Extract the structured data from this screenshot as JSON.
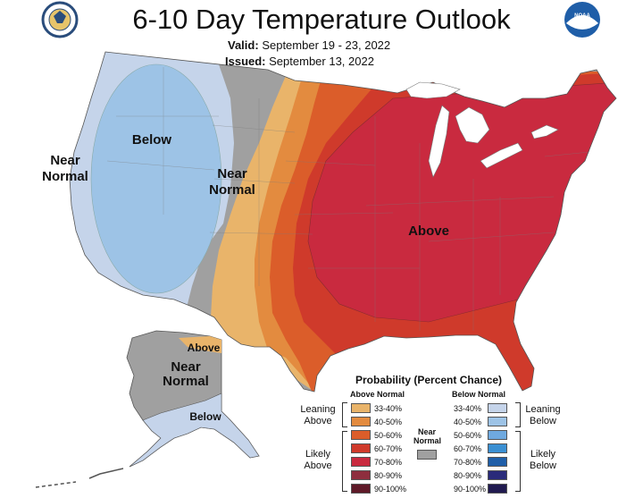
{
  "header": {
    "title": "6-10 Day Temperature Outlook",
    "valid_label": "Valid:",
    "valid_value": "September 19 - 23, 2022",
    "issued_label": "Issued:",
    "issued_value": "September 13, 2022"
  },
  "logos": {
    "left": "commerce-seal-icon",
    "right": "noaa-logo-icon",
    "noaa_text": "NOAA"
  },
  "map_labels": {
    "near_normal_west_1": "Near",
    "near_normal_west_2": "Normal",
    "below_west": "Below",
    "near_normal_center_1": "Near",
    "near_normal_center_2": "Normal",
    "above_east": "Above",
    "alaska_above": "Above",
    "alaska_near_1": "Near",
    "alaska_near_2": "Normal",
    "alaska_below": "Below"
  },
  "colors": {
    "below_leaning": "#c5d4ea",
    "below_likely": "#9dc3e6",
    "near_normal": "#a0a0a0",
    "above_33_40": "#e9b46a",
    "above_40_50": "#e38b3f",
    "above_50_60": "#db5d2a",
    "above_60_70": "#cf3a2b",
    "above_70_80": "#c92a3f"
  },
  "legend": {
    "title": "Probability (Percent Chance)",
    "above_header": "Above Normal",
    "below_header": "Below Normal",
    "near_header_1": "Near",
    "near_header_2": "Normal",
    "leaning_above_1": "Leaning",
    "leaning_above_2": "Above",
    "likely_above_1": "Likely",
    "likely_above_2": "Above",
    "leaning_below_1": "Leaning",
    "leaning_below_2": "Below",
    "likely_below_1": "Likely",
    "likely_below_2": "Below",
    "above_rows": [
      {
        "label": "33-40%",
        "color": "#e9b46a"
      },
      {
        "label": "40-50%",
        "color": "#e38b3f"
      },
      {
        "label": "50-60%",
        "color": "#db5d2a"
      },
      {
        "label": "60-70%",
        "color": "#cf3a2b"
      },
      {
        "label": "70-80%",
        "color": "#c92a3f"
      },
      {
        "label": "80-90%",
        "color": "#8e2e3e"
      },
      {
        "label": "90-100%",
        "color": "#5e1a28"
      }
    ],
    "below_rows": [
      {
        "label": "33-40%",
        "color": "#c5d4ea"
      },
      {
        "label": "40-50%",
        "color": "#9dc3e6"
      },
      {
        "label": "50-60%",
        "color": "#6fa9df"
      },
      {
        "label": "60-70%",
        "color": "#3a8fd2"
      },
      {
        "label": "70-80%",
        "color": "#1f5ea8"
      },
      {
        "label": "80-90%",
        "color": "#2a2b7a"
      },
      {
        "label": "90-100%",
        "color": "#201a4f"
      }
    ]
  }
}
